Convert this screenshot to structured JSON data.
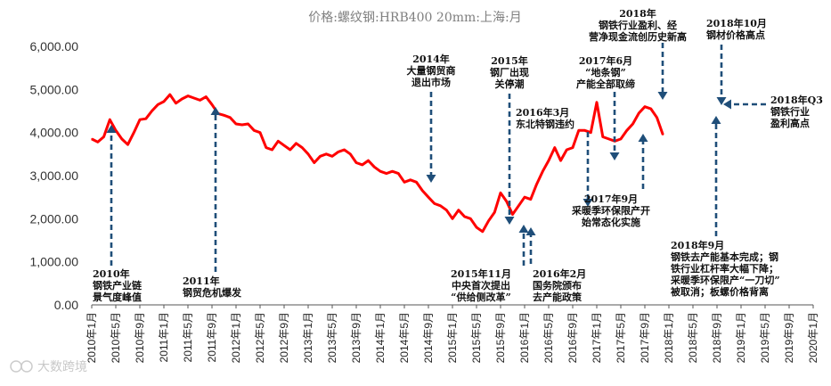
{
  "chart_data": {
    "type": "line",
    "title": "价格:螺纹钢:HRB400 20mm:上海:月",
    "ylim": [
      0,
      6000
    ],
    "yticks": [
      "0.00",
      "1,000.00",
      "2,000.00",
      "3,000.00",
      "4,000.00",
      "5,000.00",
      "6,000.00"
    ],
    "ytick_values": [
      0,
      1000,
      2000,
      3000,
      4000,
      5000,
      6000
    ],
    "xticks": [
      "2010年1月",
      "2010年5月",
      "2010年9月",
      "2011年1月",
      "2011年5月",
      "2011年9月",
      "2012年1月",
      "2012年5月",
      "2012年9月",
      "2013年1月",
      "2013年5月",
      "2013年9月",
      "2014年1月",
      "2014年5月",
      "2014年9月",
      "2015年1月",
      "2015年5月",
      "2015年9月",
      "2016年1月",
      "2016年5月",
      "2016年9月",
      "2017年1月",
      "2017年5月",
      "2017年9月",
      "2018年1月",
      "2018年5月",
      "2018年9月",
      "2019年1月",
      "2019年5月",
      "2019年9月",
      "2020年1月"
    ],
    "series": [
      {
        "name": "螺纹钢价格",
        "color": "#ff0000",
        "values": [
          3850,
          3780,
          3900,
          4300,
          4050,
          3850,
          3720,
          4000,
          4300,
          4320,
          4500,
          4650,
          4720,
          4880,
          4680,
          4780,
          4850,
          4800,
          4750,
          4830,
          4650,
          4440,
          4400,
          4350,
          4200,
          4180,
          4200,
          4050,
          4000,
          3650,
          3600,
          3800,
          3700,
          3600,
          3750,
          3650,
          3500,
          3300,
          3450,
          3500,
          3450,
          3550,
          3600,
          3500,
          3300,
          3250,
          3350,
          3200,
          3100,
          3050,
          3100,
          3050,
          2850,
          2900,
          2850,
          2650,
          2500,
          2350,
          2300,
          2200,
          2000,
          2200,
          2050,
          2000,
          1800,
          1700,
          1950,
          2150,
          2600,
          2400,
          2100,
          2300,
          2500,
          2450,
          2800,
          3100,
          3350,
          3650,
          3350,
          3600,
          3650,
          4050,
          4050,
          4000,
          4700,
          3900,
          3850,
          3800,
          3850,
          4050,
          4200,
          4450,
          4600,
          4550,
          4350,
          3950
        ]
      }
    ],
    "annotations": [
      {
        "lines": [
          "2010年",
          "钢铁产业链",
          "景气度峰值"
        ]
      },
      {
        "lines": [
          "2011年",
          "钢贸危机爆发"
        ]
      },
      {
        "lines": [
          "2014年",
          "大量钢贸商",
          "退出市场"
        ]
      },
      {
        "lines": [
          "2015年",
          "钢厂出现",
          "关停潮"
        ]
      },
      {
        "lines": [
          "2015年11月",
          "中央首次提出",
          "“供给侧改革”"
        ]
      },
      {
        "lines": [
          "2016年3月",
          "东北特钢违约"
        ]
      },
      {
        "lines": [
          "2016年2月",
          "国务院颁布",
          "去产能政策"
        ]
      },
      {
        "lines": [
          "2017年6月",
          "“地条钢”",
          "产能全部取缔"
        ]
      },
      {
        "lines": [
          "2017年9月",
          "采暖季环保限产开",
          "始常态化实施"
        ]
      },
      {
        "lines": [
          "2018年",
          "钢铁行业盈利、经",
          "营净现金流创历史新高"
        ]
      },
      {
        "lines": [
          "2018年10月",
          "钢材价格高点"
        ]
      },
      {
        "lines": [
          "2018年Q3",
          "钢铁行业",
          "盈利高点"
        ]
      },
      {
        "lines": [
          "2018年9月",
          "钢铁去产能基本完成；钢",
          "铁行业杠杆率大幅下降；",
          "采暖季环保限产“一刀切”",
          "被取消；板螺价格背离"
        ]
      }
    ]
  },
  "watermark": "大数跨境"
}
